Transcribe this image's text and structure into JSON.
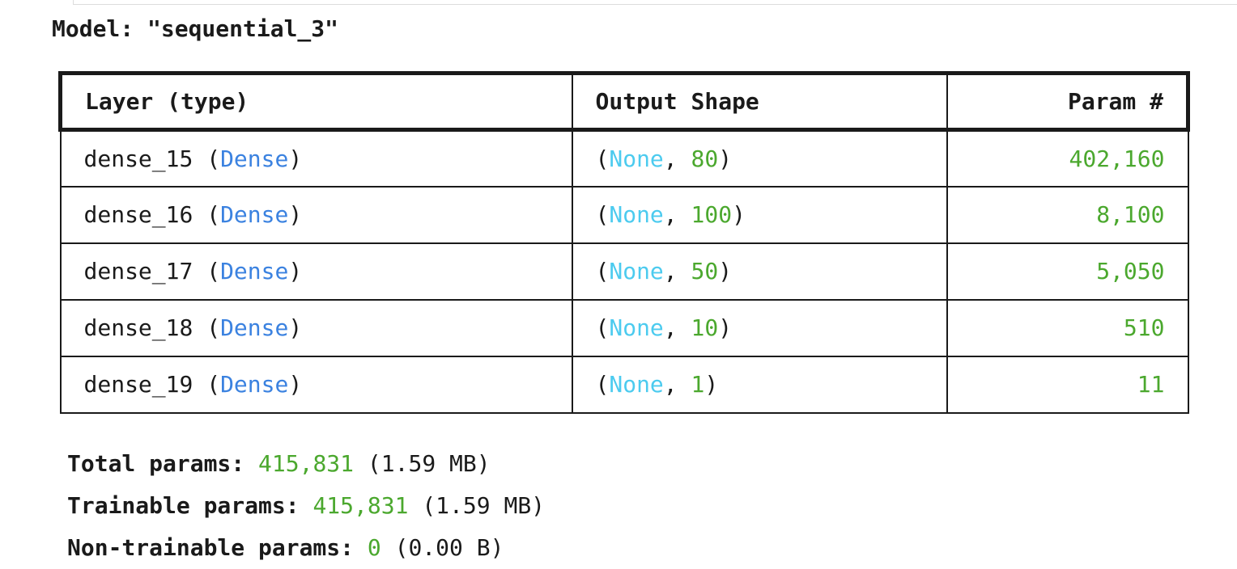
{
  "model_title": "Model: \"sequential_3\"",
  "table": {
    "headers": {
      "layer": "Layer (type)",
      "output_shape": "Output Shape",
      "params": "Param #"
    },
    "rows": [
      {
        "name": "dense_15",
        "type": "Dense",
        "none": "None",
        "units": "80",
        "params": "402,160"
      },
      {
        "name": "dense_16",
        "type": "Dense",
        "none": "None",
        "units": "100",
        "params": "8,100"
      },
      {
        "name": "dense_17",
        "type": "Dense",
        "none": "None",
        "units": "50",
        "params": "5,050"
      },
      {
        "name": "dense_18",
        "type": "Dense",
        "none": "None",
        "units": "10",
        "params": "510"
      },
      {
        "name": "dense_19",
        "type": "Dense",
        "none": "None",
        "units": "1",
        "params": "11"
      }
    ]
  },
  "totals": {
    "total": {
      "label": "Total params:",
      "value": "415,831",
      "size": "(1.59 MB)"
    },
    "trainable": {
      "label": "Trainable params:",
      "value": "415,831",
      "size": "(1.59 MB)"
    },
    "non_trainable": {
      "label": "Non-trainable params:",
      "value": "0",
      "size": "(0.00 B)"
    }
  },
  "colors": {
    "type_name": "#3b82e0",
    "none_keyword": "#4ccbef",
    "number": "#4ba82e",
    "text": "#1a1a1a"
  }
}
